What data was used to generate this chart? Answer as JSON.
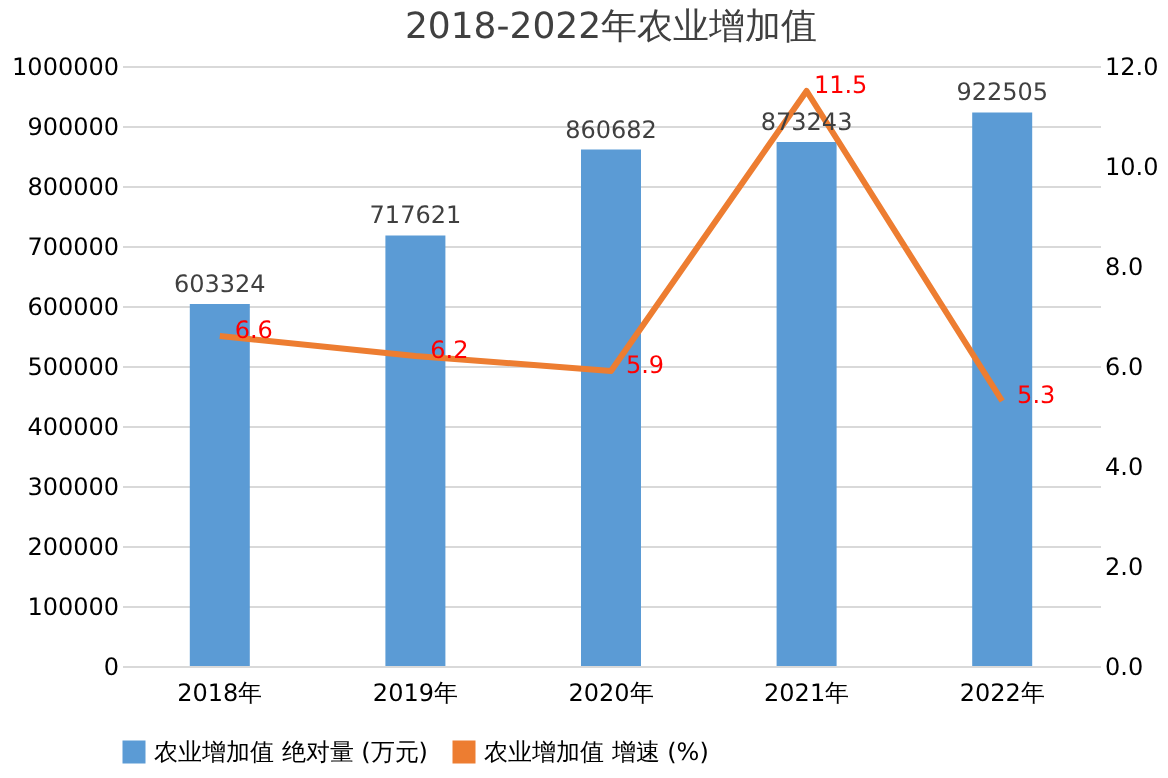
{
  "chart_data": {
    "type": "bar",
    "title": "2018-2022年农业增加值",
    "categories": [
      "2018年",
      "2019年",
      "2020年",
      "2021年",
      "2022年"
    ],
    "series": [
      {
        "name": "农业增加值 绝对量 (万元)",
        "color": "#5b9bd5",
        "values": [
          603324,
          717621,
          860682,
          873243,
          922505
        ]
      },
      {
        "name": "农业增加值 增速 (%)",
        "type": "line",
        "axis": "y2",
        "color": "#ed7d31",
        "values": [
          6.6,
          6.2,
          5.9,
          11.5,
          5.3
        ]
      }
    ],
    "ylim": [
      0,
      1000000
    ],
    "yticks": [
      0,
      100000,
      200000,
      300000,
      400000,
      500000,
      600000,
      700000,
      800000,
      900000,
      1000000
    ],
    "y2lim": [
      0,
      12
    ],
    "y2ticks": [
      {
        "value": 0,
        "label": "0.0"
      },
      {
        "value": 2,
        "label": "2.0"
      },
      {
        "value": 4,
        "label": "4.0"
      },
      {
        "value": 6,
        "label": "6.0"
      },
      {
        "value": 8,
        "label": "8.0"
      },
      {
        "value": 10,
        "label": "10.0"
      },
      {
        "value": 12,
        "label": "12.0"
      }
    ],
    "grid": "y",
    "legend": "bottom",
    "data_labels": true,
    "marker": "none",
    "line_style": "solid"
  }
}
